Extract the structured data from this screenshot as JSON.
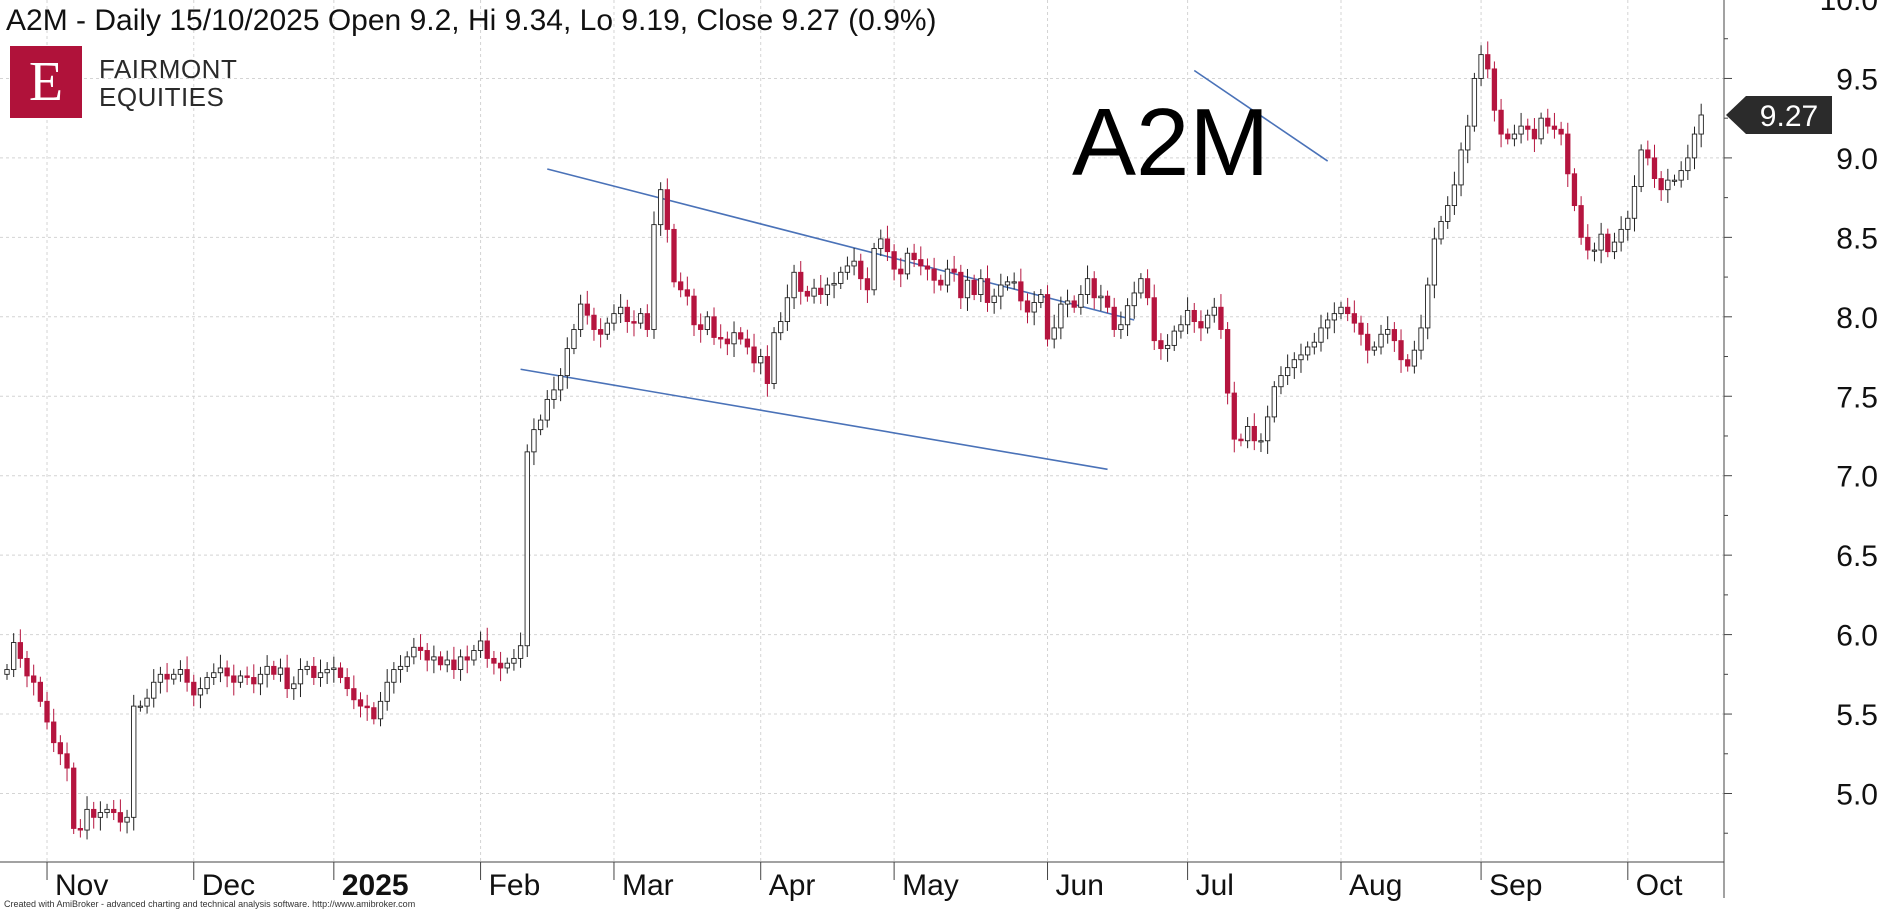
{
  "header": {
    "title": "A2M - Daily 15/10/2025 Open 9.2, Hi 9.34, Lo 9.19, Close 9.27 (0.9%)",
    "logo_letter": "E",
    "logo_line1": "FAIRMONT",
    "logo_line2": "EQUITIES",
    "ticker_label": "A2M",
    "credit": "Created with AmiBroker - advanced charting and technical analysis software. http://www.amibroker.com"
  },
  "chart_data": {
    "type": "candlestick",
    "title": "A2M - Daily 15/10/2025 Open 9.2, Hi 9.34, Lo 9.19, Close 9.27 (0.9%)",
    "ylim": [
      4.6,
      10.1
    ],
    "y_ticks": [
      5.0,
      5.5,
      6.0,
      6.5,
      7.0,
      7.5,
      8.0,
      8.5,
      9.0,
      9.5,
      10.0
    ],
    "x_labels": [
      {
        "label": "Nov",
        "bar": 6,
        "bold": false
      },
      {
        "label": "Dec",
        "bar": 28,
        "bold": false
      },
      {
        "label": "2025",
        "bar": 49,
        "bold": true
      },
      {
        "label": "Feb",
        "bar": 71,
        "bold": false
      },
      {
        "label": "Mar",
        "bar": 91,
        "bold": false
      },
      {
        "label": "Apr",
        "bar": 113,
        "bold": false
      },
      {
        "label": "May",
        "bar": 133,
        "bold": false
      },
      {
        "label": "Jun",
        "bar": 156,
        "bold": false
      },
      {
        "label": "Jul",
        "bar": 177,
        "bold": false
      },
      {
        "label": "Aug",
        "bar": 200,
        "bold": false
      },
      {
        "label": "Sep",
        "bar": 221,
        "bold": false
      },
      {
        "label": "Oct",
        "bar": 243,
        "bold": false
      }
    ],
    "last_close": 9.27,
    "last_close_label": "9.27",
    "colors": {
      "up": "#ffffff",
      "down": "#b5153f",
      "trendline": "#4a72b8",
      "grid": "#d4d4d4"
    },
    "grid": true,
    "closes": [
      5.78,
      5.95,
      5.85,
      5.74,
      5.7,
      5.58,
      5.45,
      5.32,
      5.25,
      5.16,
      4.78,
      4.77,
      4.9,
      4.85,
      4.88,
      4.9,
      4.88,
      4.82,
      4.85,
      5.55,
      5.55,
      5.6,
      5.7,
      5.75,
      5.72,
      5.75,
      5.78,
      5.7,
      5.62,
      5.66,
      5.73,
      5.76,
      5.79,
      5.74,
      5.7,
      5.74,
      5.73,
      5.69,
      5.75,
      5.8,
      5.75,
      5.79,
      5.66,
      5.69,
      5.78,
      5.8,
      5.73,
      5.76,
      5.78,
      5.79,
      5.73,
      5.66,
      5.59,
      5.55,
      5.54,
      5.47,
      5.58,
      5.7,
      5.78,
      5.8,
      5.86,
      5.92,
      5.9,
      5.84,
      5.86,
      5.81,
      5.84,
      5.78,
      5.86,
      5.84,
      5.9,
      5.96,
      5.85,
      5.82,
      5.79,
      5.82,
      5.85,
      5.93,
      7.15,
      7.29,
      7.35,
      7.48,
      7.54,
      7.63,
      7.8,
      7.92,
      8.08,
      8.01,
      7.92,
      7.89,
      7.96,
      8.02,
      8.06,
      7.97,
      7.96,
      8.02,
      7.92,
      8.58,
      8.8,
      8.55,
      8.22,
      8.17,
      8.13,
      7.95,
      7.92,
      8.0,
      7.87,
      7.86,
      7.83,
      7.9,
      7.86,
      7.81,
      7.71,
      7.75,
      7.58,
      7.9,
      7.97,
      8.12,
      8.28,
      8.16,
      8.13,
      8.18,
      8.14,
      8.2,
      8.21,
      8.28,
      8.32,
      8.35,
      8.24,
      8.17,
      8.43,
      8.49,
      8.41,
      8.3,
      8.27,
      8.4,
      8.36,
      8.32,
      8.3,
      8.23,
      8.2,
      8.3,
      8.28,
      8.12,
      8.23,
      8.14,
      8.24,
      8.09,
      8.13,
      8.2,
      8.22,
      8.22,
      8.1,
      8.03,
      8.09,
      8.14,
      7.86,
      7.93,
      8.08,
      8.1,
      8.06,
      8.14,
      8.24,
      8.12,
      8.13,
      8.06,
      7.92,
      7.95,
      8.07,
      8.15,
      8.24,
      8.12,
      7.85,
      7.8,
      7.82,
      7.91,
      7.95,
      8.04,
      7.97,
      7.93,
      8.01,
      8.06,
      7.92,
      7.52,
      7.23,
      7.22,
      7.31,
      7.22,
      7.22,
      7.37,
      7.56,
      7.63,
      7.68,
      7.73,
      7.76,
      7.81,
      7.84,
      7.93,
      7.98,
      8.02,
      8.06,
      8.02,
      7.96,
      7.89,
      7.79,
      7.81,
      7.89,
      7.92,
      7.85,
      7.73,
      7.69,
      7.79,
      7.93,
      8.2,
      8.49,
      8.6,
      8.7,
      8.83,
      9.05,
      9.2,
      9.5,
      9.65,
      9.56,
      9.3,
      9.15,
      9.12,
      9.15,
      9.2,
      9.18,
      9.12,
      9.25,
      9.2,
      9.18,
      9.15,
      8.9,
      8.7,
      8.5,
      8.42,
      8.42,
      8.52,
      8.41,
      8.47,
      8.55,
      8.62,
      8.82,
      9.05,
      9.0,
      8.87,
      8.8,
      8.86,
      8.86,
      8.92,
      9.0,
      9.15,
      9.27
    ]
  }
}
